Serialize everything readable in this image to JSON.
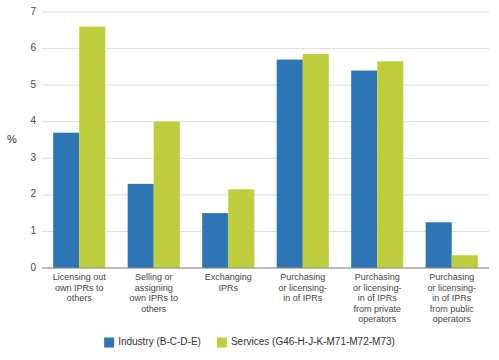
{
  "chart_data": {
    "type": "bar",
    "ylabel": "%",
    "categories": [
      "Licensing out\nown IPRs to\nothers",
      "Selling or\nassigning\nown IPRs to\nothers",
      "Exchanging\nIPRs",
      "Purchasing\nor licensing-\nin of IPRs",
      "Purchasing\nor licensing-\nin of IPRs\nfrom private\noperators",
      "Purchasing\nor licensing-\nin of IPRs\nfrom public\noperators"
    ],
    "series": [
      {
        "name": "Industry (B-C-D-E)",
        "color": "#2E75B6",
        "values": [
          3.7,
          2.3,
          1.5,
          5.7,
          5.4,
          1.25
        ]
      },
      {
        "name": "Services (G46-H-J-K-M71-M72-M73)",
        "color": "#BFCE3C",
        "values": [
          6.6,
          4.0,
          2.15,
          5.85,
          5.65,
          0.35
        ]
      }
    ],
    "ylim": [
      0,
      7
    ],
    "yticks": [
      0,
      1,
      2,
      3,
      4,
      5,
      6,
      7
    ],
    "grid": true,
    "legend": "bottom"
  }
}
